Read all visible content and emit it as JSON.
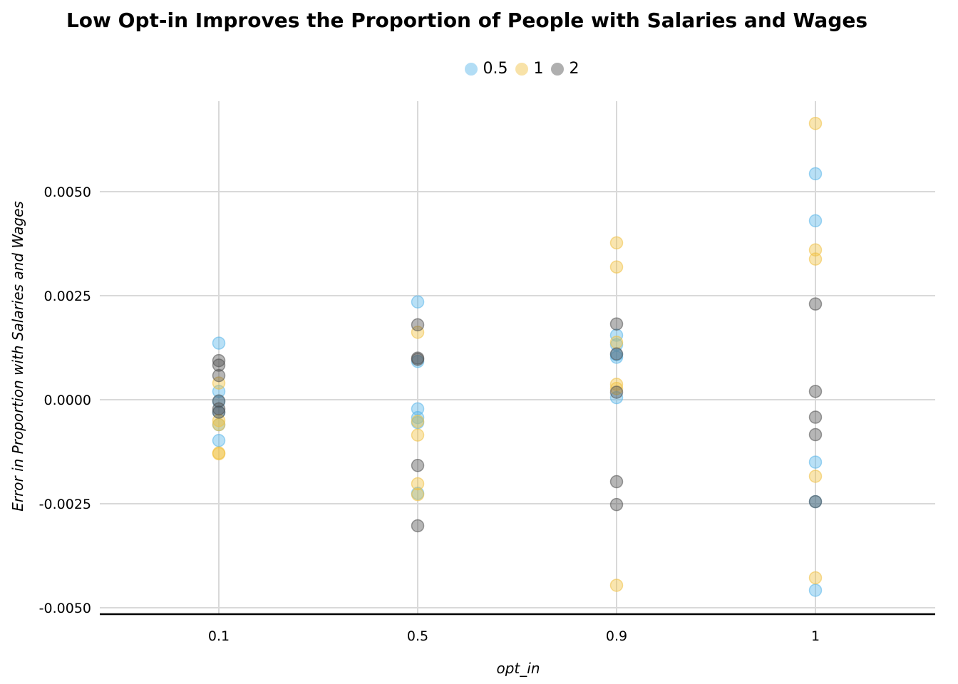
{
  "chart_data": {
    "type": "scatter",
    "title": "Low Opt-in Improves the Proportion of People with Salaries and Wages",
    "xlabel": "opt_in",
    "ylabel": "Error in Proportion with Salaries and Wages",
    "categories": [
      "0.1",
      "0.5",
      "0.9",
      "1"
    ],
    "ylim": [
      -0.0052,
      0.0072
    ],
    "yticks": [
      -0.005,
      -0.0025,
      0.0,
      0.0025,
      0.005
    ],
    "ytick_labels": [
      "-0.0050",
      "-0.0025",
      "0.0000",
      "0.0025",
      "0.0050"
    ],
    "grid": true,
    "legend_position": "top",
    "series": [
      {
        "name": "0.5",
        "color": "#56B4E9",
        "points": [
          {
            "x": "0.1",
            "y": 0.00136
          },
          {
            "x": "0.1",
            "y": 0.0002
          },
          {
            "x": "0.1",
            "y": -5e-05
          },
          {
            "x": "0.1",
            "y": -0.0003
          },
          {
            "x": "0.1",
            "y": -0.0006
          },
          {
            "x": "0.1",
            "y": -0.00098
          },
          {
            "x": "0.5",
            "y": 0.00235
          },
          {
            "x": "0.5",
            "y": 0.00092
          },
          {
            "x": "0.5",
            "y": -0.00022
          },
          {
            "x": "0.5",
            "y": -0.00043
          },
          {
            "x": "0.5",
            "y": -0.00055
          },
          {
            "x": "0.5",
            "y": -0.00225
          },
          {
            "x": "0.9",
            "y": 0.00155
          },
          {
            "x": "0.9",
            "y": 0.00132
          },
          {
            "x": "0.9",
            "y": 0.00108
          },
          {
            "x": "0.9",
            "y": 0.00102
          },
          {
            "x": "0.9",
            "y": 5e-05
          },
          {
            "x": "1",
            "y": 0.00543
          },
          {
            "x": "1",
            "y": 0.0043
          },
          {
            "x": "1",
            "y": -0.0015
          },
          {
            "x": "1",
            "y": -0.00245
          },
          {
            "x": "1",
            "y": -0.00458
          }
        ]
      },
      {
        "name": "1",
        "color": "#F0C040",
        "points": [
          {
            "x": "0.1",
            "y": 0.0004
          },
          {
            "x": "0.1",
            "y": -0.0005
          },
          {
            "x": "0.1",
            "y": -0.0006
          },
          {
            "x": "0.1",
            "y": -0.0013
          },
          {
            "x": "0.1",
            "y": -0.00128
          },
          {
            "x": "0.5",
            "y": 0.00162
          },
          {
            "x": "0.5",
            "y": -0.00052
          },
          {
            "x": "0.5",
            "y": -0.00085
          },
          {
            "x": "0.5",
            "y": -0.00202
          },
          {
            "x": "0.5",
            "y": -0.00228
          },
          {
            "x": "0.9",
            "y": 0.00377
          },
          {
            "x": "0.9",
            "y": 0.00319
          },
          {
            "x": "0.9",
            "y": 0.00138
          },
          {
            "x": "0.9",
            "y": 0.00037
          },
          {
            "x": "0.9",
            "y": 0.00027
          },
          {
            "x": "0.9",
            "y": -0.00446
          },
          {
            "x": "1",
            "y": 0.00664
          },
          {
            "x": "1",
            "y": 0.0036
          },
          {
            "x": "1",
            "y": 0.00338
          },
          {
            "x": "1",
            "y": -0.00184
          },
          {
            "x": "1",
            "y": -0.00428
          }
        ]
      },
      {
        "name": "2",
        "color": "#505050",
        "points": [
          {
            "x": "0.1",
            "y": 0.00094
          },
          {
            "x": "0.1",
            "y": 0.00083
          },
          {
            "x": "0.1",
            "y": 0.00058
          },
          {
            "x": "0.1",
            "y": -3e-05
          },
          {
            "x": "0.1",
            "y": -0.00022
          },
          {
            "x": "0.1",
            "y": -0.0003
          },
          {
            "x": "0.5",
            "y": 0.0018
          },
          {
            "x": "0.5",
            "y": 0.001
          },
          {
            "x": "0.5",
            "y": 0.00097
          },
          {
            "x": "0.5",
            "y": -0.00158
          },
          {
            "x": "0.5",
            "y": -0.00303
          },
          {
            "x": "0.9",
            "y": 0.00182
          },
          {
            "x": "0.9",
            "y": 0.0011
          },
          {
            "x": "0.9",
            "y": 0.00018
          },
          {
            "x": "0.9",
            "y": -0.00197
          },
          {
            "x": "0.9",
            "y": -0.00252
          },
          {
            "x": "1",
            "y": 0.0023
          },
          {
            "x": "1",
            "y": 0.0002
          },
          {
            "x": "1",
            "y": -0.00042
          },
          {
            "x": "1",
            "y": -0.00084
          },
          {
            "x": "1",
            "y": -0.00245
          }
        ]
      }
    ]
  }
}
